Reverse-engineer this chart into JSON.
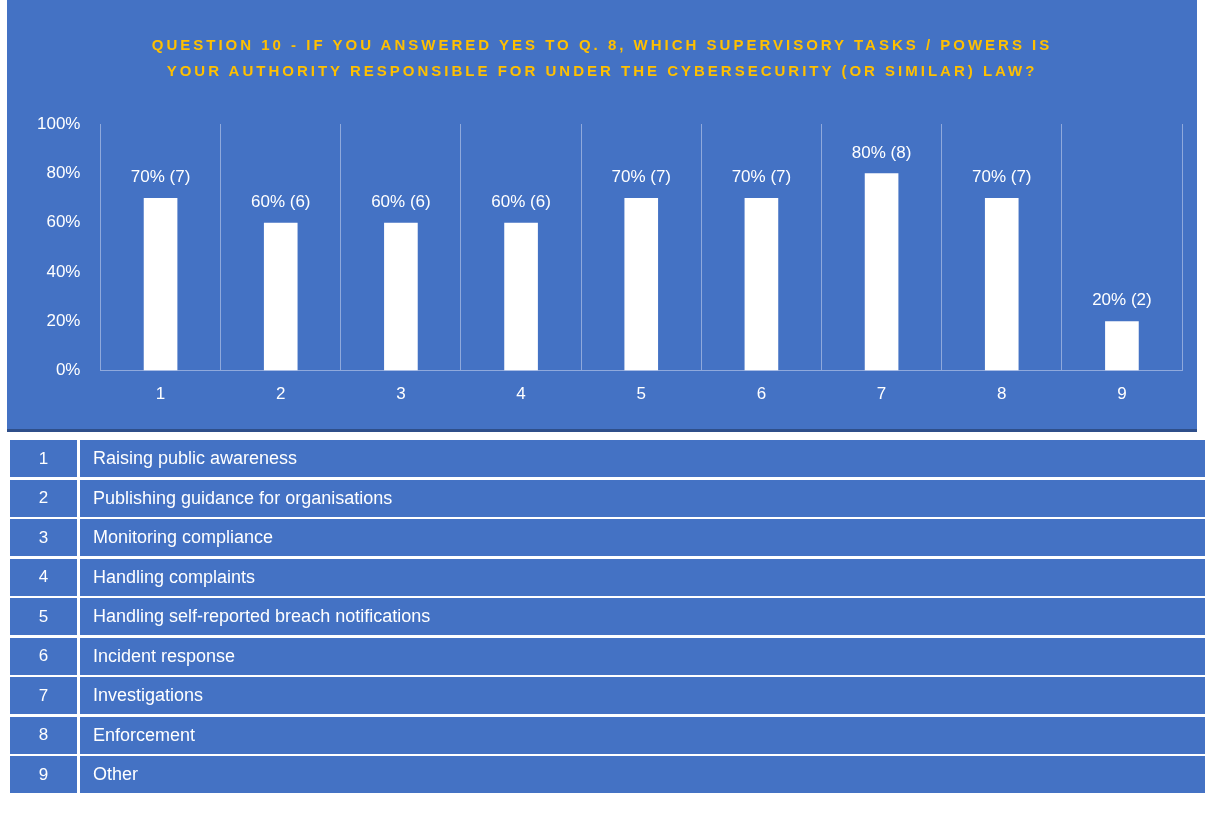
{
  "chart_data": {
    "type": "bar",
    "title": "QUESTION 10 - IF YOU ANSWERED YES TO Q. 8, WHICH SUPERVISORY TASKS / POWERS IS YOUR AUTHORITY RESPONSIBLE FOR UNDER THE CYBERSECURITY (OR SIMILAR) LAW?",
    "categories": [
      "1",
      "2",
      "3",
      "4",
      "5",
      "6",
      "7",
      "8",
      "9"
    ],
    "values": [
      70,
      60,
      60,
      60,
      70,
      70,
      80,
      70,
      20
    ],
    "value_labels": [
      "70% (7)",
      "60% (6)",
      "60% (6)",
      "60% (6)",
      "70% (7)",
      "70% (7)",
      "80% (8)",
      "70% (7)",
      "20% (2)"
    ],
    "color": "#ffffff",
    "ylim": [
      0,
      100
    ],
    "yticks": [
      {
        "value": 0,
        "label": "0%"
      },
      {
        "value": 20,
        "label": "20%"
      },
      {
        "value": 40,
        "label": "40%"
      },
      {
        "value": 60,
        "label": "60%"
      },
      {
        "value": 80,
        "label": "80%"
      },
      {
        "value": 100,
        "label": "100%"
      }
    ],
    "grid": "x",
    "annotations": [
      "Raising public awareness",
      "Publishing guidance for organisations",
      "Monitoring compliance",
      "Handling complaints",
      "Handling self-reported breach notifications",
      "Incident response",
      "Investigations",
      "Enforcement",
      "Other"
    ]
  }
}
